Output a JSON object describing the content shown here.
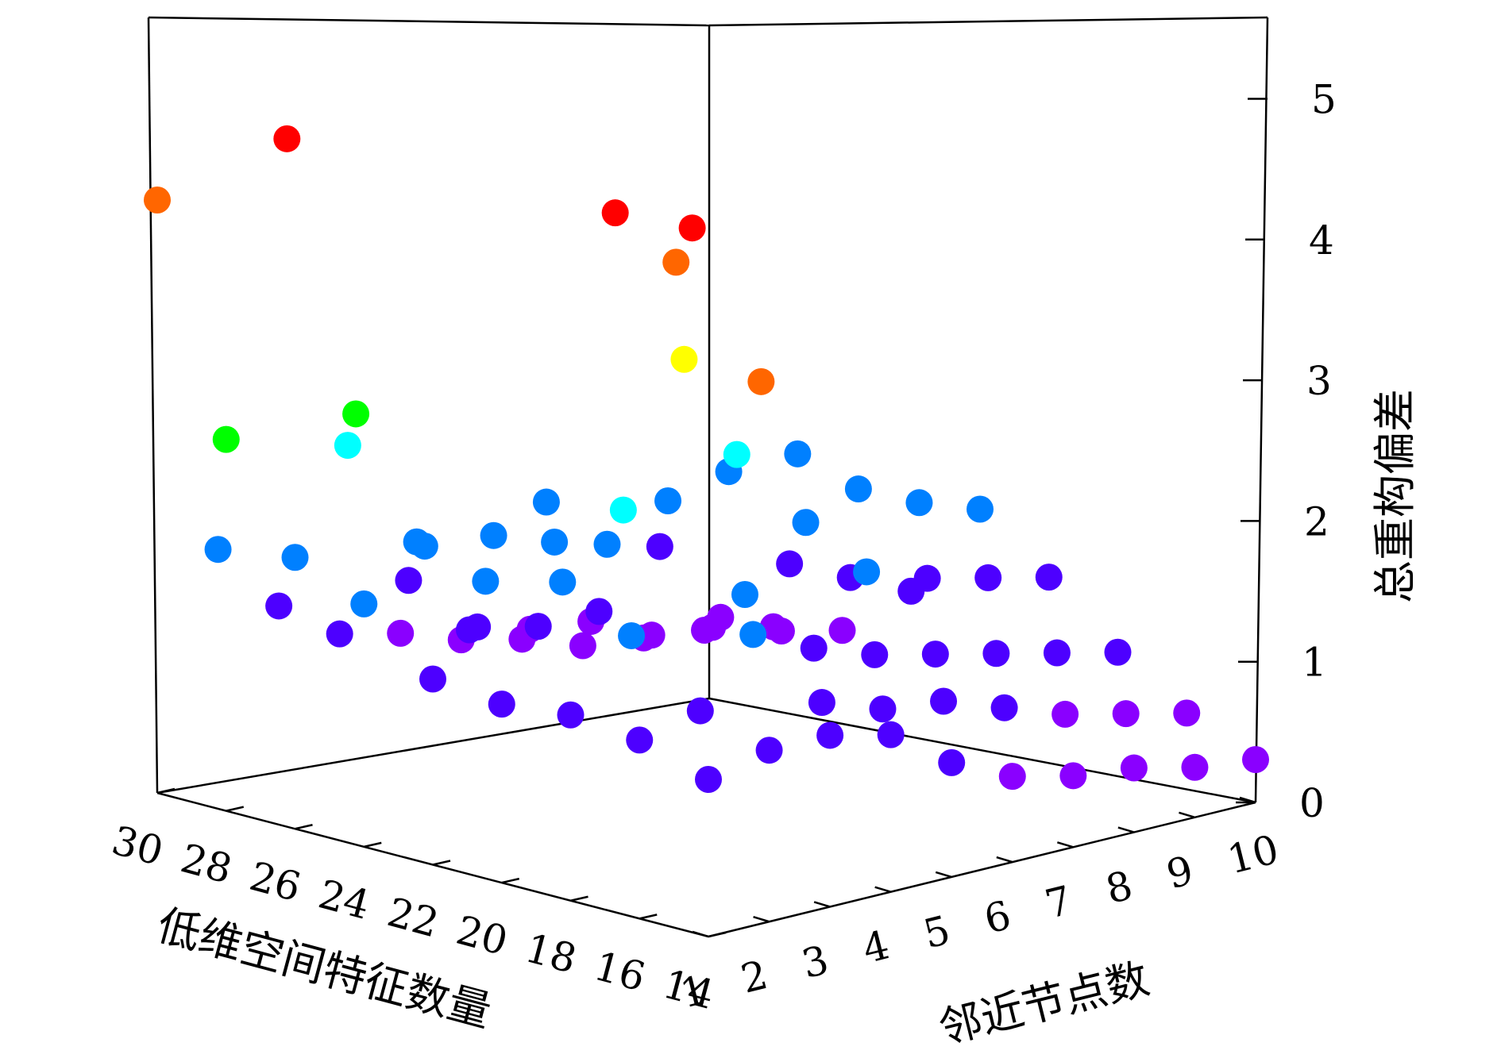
{
  "chart_data": {
    "type": "scatter3d",
    "title": "",
    "xlabel": "低维空间特征数量",
    "ylabel": "邻近节点数",
    "zlabel": "总重构偏差",
    "x_ticks": [
      "30",
      "28",
      "26",
      "24",
      "22",
      "20",
      "18",
      "16",
      "14"
    ],
    "y_ticks": [
      "1",
      "2",
      "3",
      "4",
      "5",
      "6",
      "7",
      "8",
      "9",
      "10"
    ],
    "z_ticks": [
      "0",
      "1",
      "2",
      "3",
      "4",
      "5"
    ],
    "xlim": [
      14,
      30
    ],
    "ylim": [
      1,
      10
    ],
    "zlim": [
      0,
      5
    ],
    "colormap": [
      "#8a00ff",
      "#4d00ff",
      "#0080ff",
      "#00ffff",
      "#00ff00",
      "#ffff00",
      "#ff6600",
      "#ff0000"
    ],
    "points": [
      {
        "x": 30,
        "y": 1,
        "z": 4.15
      },
      {
        "x": 28,
        "y": 1,
        "z": 2.6
      },
      {
        "x": 26,
        "y": 1,
        "z": 1.9
      },
      {
        "x": 24,
        "y": 1,
        "z": 1.7
      },
      {
        "x": 22,
        "y": 1,
        "z": 1.3
      },
      {
        "x": 20,
        "y": 1,
        "z": 1.25
      },
      {
        "x": 18,
        "y": 1,
        "z": 1.3
      },
      {
        "x": 16,
        "y": 1,
        "z": 1.25
      },
      {
        "x": 14,
        "y": 1,
        "z": 1.1
      },
      {
        "x": 30,
        "y": 2,
        "z": 1.6
      },
      {
        "x": 28,
        "y": 2,
        "z": 4.6
      },
      {
        "x": 26,
        "y": 2,
        "z": 2.8
      },
      {
        "x": 24,
        "y": 2,
        "z": 2.0
      },
      {
        "x": 22,
        "y": 2,
        "z": 2.2
      },
      {
        "x": 20,
        "y": 2,
        "z": 2.0
      },
      {
        "x": 18,
        "y": 2,
        "z": 1.75
      },
      {
        "x": 16,
        "y": 2,
        "z": 1.35
      },
      {
        "x": 14,
        "y": 2,
        "z": 1.2
      },
      {
        "x": 30,
        "y": 3,
        "z": 1.1
      },
      {
        "x": 28,
        "y": 3,
        "z": 2.35
      },
      {
        "x": 26,
        "y": 3,
        "z": 1.8
      },
      {
        "x": 24,
        "y": 3,
        "z": 1.65
      },
      {
        "x": 22,
        "y": 3,
        "z": 2.05
      },
      {
        "x": 20,
        "y": 3,
        "z": 2.4
      },
      {
        "x": 18,
        "y": 3,
        "z": 4.5
      },
      {
        "x": 16,
        "y": 3,
        "z": 3.55
      },
      {
        "x": 14,
        "y": 3,
        "z": 1.2
      },
      {
        "x": 30,
        "y": 4,
        "z": 0.8
      },
      {
        "x": 28,
        "y": 4,
        "z": 1.3
      },
      {
        "x": 26,
        "y": 4,
        "z": 1.1
      },
      {
        "x": 24,
        "y": 4,
        "z": 2.1
      },
      {
        "x": 22,
        "y": 4,
        "z": 4.25
      },
      {
        "x": 20,
        "y": 4,
        "z": 3.35
      },
      {
        "x": 18,
        "y": 4,
        "z": 1.55
      },
      {
        "x": 16,
        "y": 4,
        "z": 1.2
      },
      {
        "x": 14,
        "y": 4,
        "z": 1.1
      },
      {
        "x": 30,
        "y": 5,
        "z": 0.7
      },
      {
        "x": 28,
        "y": 5,
        "z": 0.85
      },
      {
        "x": 26,
        "y": 5,
        "z": 1.0
      },
      {
        "x": 24,
        "y": 5,
        "z": 1.7
      },
      {
        "x": 22,
        "y": 5,
        "z": 3.8
      },
      {
        "x": 20,
        "y": 5,
        "z": 1.6
      },
      {
        "x": 18,
        "y": 5,
        "z": 1.35
      },
      {
        "x": 16,
        "y": 5,
        "z": 1.05
      },
      {
        "x": 14,
        "y": 5,
        "z": 0.8
      },
      {
        "x": 30,
        "y": 6,
        "z": 0.55
      },
      {
        "x": 28,
        "y": 6,
        "z": 0.75
      },
      {
        "x": 26,
        "y": 6,
        "z": 1.0
      },
      {
        "x": 24,
        "y": 6,
        "z": 1.9
      },
      {
        "x": 22,
        "y": 6,
        "z": 2.35
      },
      {
        "x": 20,
        "y": 6,
        "z": 2.0
      },
      {
        "x": 18,
        "y": 6,
        "z": 1.2
      },
      {
        "x": 16,
        "y": 6,
        "z": 1.0
      },
      {
        "x": 14,
        "y": 6,
        "z": 0.6
      },
      {
        "x": 30,
        "y": 7,
        "z": 0.45
      },
      {
        "x": 28,
        "y": 7,
        "z": 0.7
      },
      {
        "x": 26,
        "y": 7,
        "z": 1.35
      },
      {
        "x": 24,
        "y": 7,
        "z": 2.0
      },
      {
        "x": 22,
        "y": 7,
        "z": 2.25
      },
      {
        "x": 20,
        "y": 7,
        "z": 1.55
      },
      {
        "x": 18,
        "y": 7,
        "z": 1.1
      },
      {
        "x": 16,
        "y": 7,
        "z": 0.85
      },
      {
        "x": 14,
        "y": 7,
        "z": 0.5
      },
      {
        "x": 30,
        "y": 8,
        "z": 0.3
      },
      {
        "x": 28,
        "y": 8,
        "z": 0.5
      },
      {
        "x": 26,
        "y": 8,
        "z": 0.75
      },
      {
        "x": 24,
        "y": 8,
        "z": 1.25
      },
      {
        "x": 22,
        "y": 8,
        "z": 1.9
      },
      {
        "x": 20,
        "y": 8,
        "z": 1.4
      },
      {
        "x": 18,
        "y": 8,
        "z": 1.0
      },
      {
        "x": 16,
        "y": 8,
        "z": 0.7
      },
      {
        "x": 14,
        "y": 8,
        "z": 0.45
      },
      {
        "x": 30,
        "y": 9,
        "z": 0.25
      },
      {
        "x": 28,
        "y": 9,
        "z": 0.45
      },
      {
        "x": 26,
        "y": 9,
        "z": 0.55
      },
      {
        "x": 24,
        "y": 9,
        "z": 1.05
      },
      {
        "x": 22,
        "y": 9,
        "z": 1.7
      },
      {
        "x": 20,
        "y": 9,
        "z": 1.3
      },
      {
        "x": 18,
        "y": 9,
        "z": 0.9
      },
      {
        "x": 16,
        "y": 9,
        "z": 0.6
      },
      {
        "x": 14,
        "y": 9,
        "z": 0.35
      },
      {
        "x": 30,
        "y": 10,
        "z": 0.2
      },
      {
        "x": 28,
        "y": 10,
        "z": 0.35
      },
      {
        "x": 26,
        "y": 10,
        "z": 0.45
      },
      {
        "x": 24,
        "y": 10,
        "z": 0.85
      },
      {
        "x": 22,
        "y": 10,
        "z": 1.55
      },
      {
        "x": 20,
        "y": 10,
        "z": 1.2
      },
      {
        "x": 18,
        "y": 10,
        "z": 0.8
      },
      {
        "x": 16,
        "y": 10,
        "z": 0.5
      },
      {
        "x": 14,
        "y": 10,
        "z": 0.3
      }
    ]
  }
}
